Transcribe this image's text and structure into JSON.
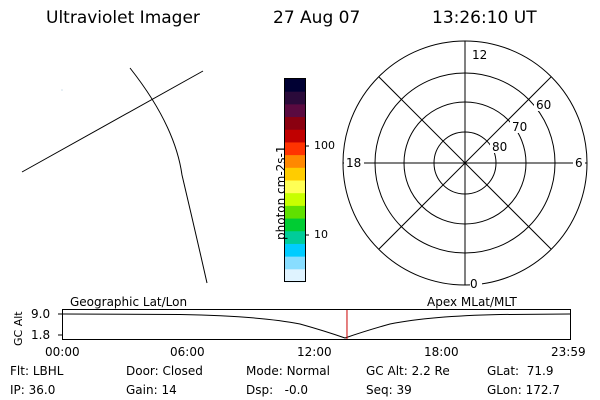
{
  "header": {
    "instrument": "Ultraviolet Imager",
    "date": "27 Aug 07",
    "time": "13:26:10 UT"
  },
  "colorbar": {
    "label": "photon cm-2s-1",
    "ticks": [
      "100",
      "10"
    ],
    "colors": [
      "#000033",
      "#2a0a3a",
      "#5a0a40",
      "#8a0010",
      "#c00000",
      "#ff3300",
      "#ff8800",
      "#ffcc00",
      "#ffff55",
      "#c8ff00",
      "#60e000",
      "#00cc33",
      "#00cc99",
      "#00ccff",
      "#88ddff",
      "#dff3ff"
    ]
  },
  "polar": {
    "mlt_labels": {
      "top": "12",
      "bottom": "0",
      "left": "18",
      "right": "6"
    },
    "lat_labels": [
      "60",
      "70",
      "80"
    ]
  },
  "timeline": {
    "y_axis_label": "GC Alt",
    "y_ticks": [
      "9.0",
      "1.8"
    ],
    "left_title": "Geographic Lat/Lon",
    "right_title": "Apex MLat/MLT",
    "x_ticks": [
      "00:00",
      "06:00",
      "12:00",
      "18:00",
      "23:59"
    ],
    "marker_time": "13:26",
    "marker_color": "#cc0000"
  },
  "status": {
    "row1": [
      {
        "label": "Flt:",
        "value": "LBHL"
      },
      {
        "label": "Door:",
        "value": "Closed"
      },
      {
        "label": "Mode:",
        "value": "Normal"
      },
      {
        "label": "GC Alt:",
        "value": "2.2 Re"
      },
      {
        "label": "GLat:",
        "value": "71.9"
      }
    ],
    "row2": [
      {
        "label": "IP:",
        "value": "36.0"
      },
      {
        "label": "Gain:",
        "value": "14"
      },
      {
        "label": "Dsp:",
        "value": "-0.0"
      },
      {
        "label": "Seq:",
        "value": "39"
      },
      {
        "label": "GLon:",
        "value": "172.7"
      }
    ]
  }
}
